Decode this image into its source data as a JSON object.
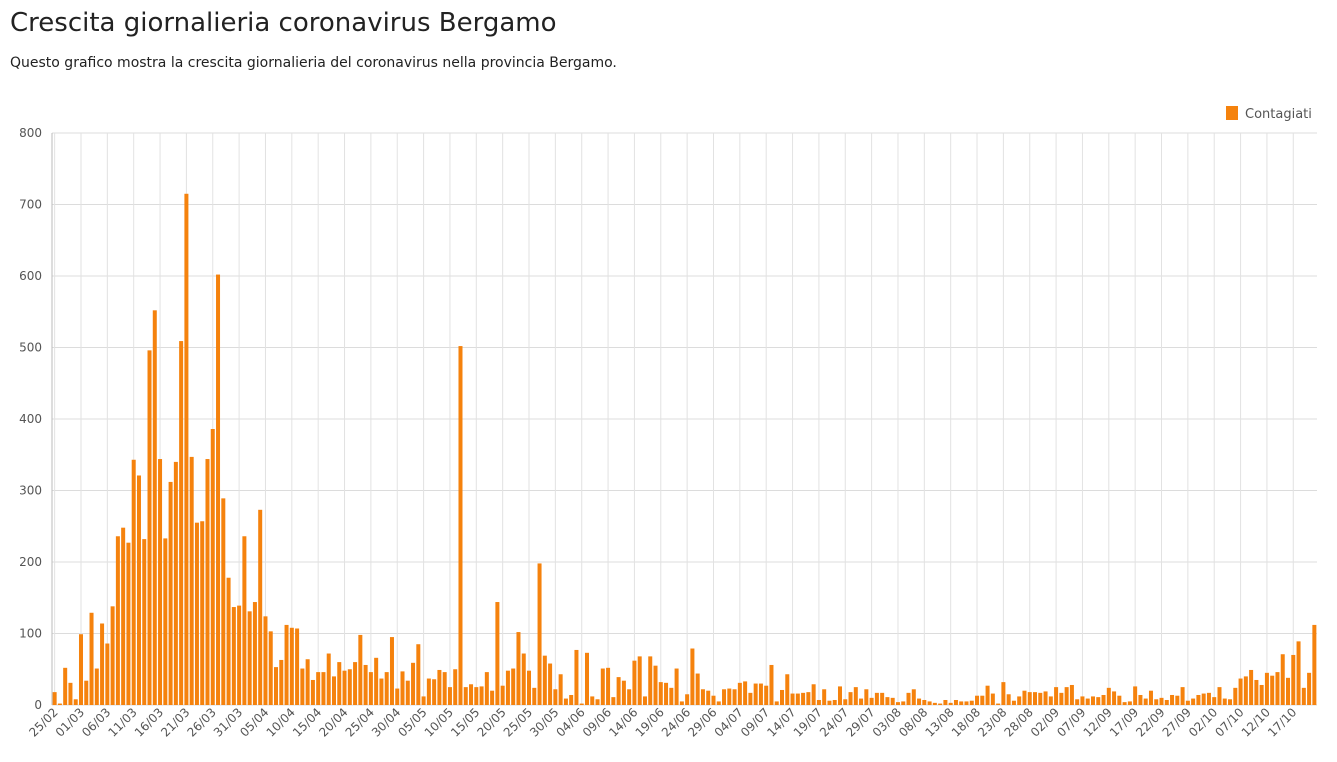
{
  "chart_data": {
    "type": "bar",
    "title": "Crescita giornalieria coronavirus Bergamo",
    "subtitle": "Questo grafico mostra la crescita giornalieria del coronavirus nella provincia Bergamo.",
    "categories": [
      "25/02",
      null,
      null,
      null,
      null,
      "01/03",
      null,
      null,
      null,
      null,
      "06/03",
      null,
      null,
      null,
      null,
      "11/03",
      null,
      null,
      null,
      null,
      "16/03",
      null,
      null,
      null,
      null,
      "21/03",
      null,
      null,
      null,
      null,
      "26/03",
      null,
      null,
      null,
      null,
      "31/03",
      null,
      null,
      null,
      null,
      "05/04",
      null,
      null,
      null,
      null,
      "10/04",
      null,
      null,
      null,
      null,
      "15/04",
      null,
      null,
      null,
      null,
      "20/04",
      null,
      null,
      null,
      null,
      "25/04",
      null,
      null,
      null,
      null,
      "30/04",
      null,
      null,
      null,
      null,
      "05/05",
      null,
      null,
      null,
      null,
      "10/05",
      null,
      null,
      null,
      null,
      "15/05",
      null,
      null,
      null,
      null,
      "20/05",
      null,
      null,
      null,
      null,
      "25/05",
      null,
      null,
      null,
      null,
      "30/05",
      null,
      null,
      null,
      null,
      "04/06",
      null,
      null,
      null,
      null,
      "09/06",
      null,
      null,
      null,
      null,
      "14/06",
      null,
      null,
      null,
      null,
      "19/06",
      null,
      null,
      null,
      null,
      "24/06",
      null,
      null,
      null,
      null,
      "29/06",
      null,
      null,
      null,
      null,
      "04/07",
      null,
      null,
      null,
      null,
      "09/07",
      null,
      null,
      null,
      null,
      "14/07",
      null,
      null,
      null,
      null,
      "19/07",
      null,
      null,
      null,
      null,
      "24/07",
      null,
      null,
      null,
      null,
      "29/07",
      null,
      null,
      null,
      null,
      "03/08",
      null,
      null,
      null,
      null,
      "08/08",
      null,
      null,
      null,
      null,
      "13/08",
      null,
      null,
      null,
      null,
      "18/08",
      null,
      null,
      null,
      null,
      "23/08",
      null,
      null,
      null,
      null,
      "28/08",
      null,
      null,
      null,
      null,
      "02/09",
      null,
      null,
      null,
      null,
      "07/09",
      null,
      null,
      null,
      null,
      "12/09",
      null,
      null,
      null,
      null,
      "17/09",
      null,
      null,
      null,
      null,
      "22/09",
      null,
      null,
      null,
      null,
      "27/09",
      null,
      null,
      null,
      null,
      "02/10",
      null,
      null,
      null,
      null,
      "07/10",
      null,
      null,
      null,
      null,
      "12/10",
      null,
      null,
      null,
      null,
      "17/10",
      null,
      null,
      null,
      null
    ],
    "series": [
      {
        "name": "Contagiati",
        "color": "#f5820d",
        "values": [
          18,
          2,
          52,
          31,
          8,
          99,
          34,
          129,
          51,
          114,
          86,
          138,
          236,
          248,
          227,
          343,
          321,
          232,
          496,
          552,
          344,
          233,
          312,
          340,
          509,
          715,
          347,
          255,
          257,
          344,
          386,
          602,
          289,
          178,
          137,
          139,
          236,
          131,
          144,
          273,
          124,
          103,
          53,
          63,
          112,
          108,
          107,
          51,
          64,
          35,
          46,
          46,
          72,
          40,
          60,
          48,
          50,
          60,
          98,
          56,
          46,
          66,
          37,
          46,
          95,
          23,
          47,
          34,
          59,
          85,
          12,
          37,
          36,
          49,
          46,
          25,
          50,
          502,
          25,
          29,
          25,
          26,
          46,
          20,
          144,
          27,
          48,
          51,
          102,
          72,
          48,
          24,
          198,
          69,
          58,
          22,
          43,
          9,
          14,
          77,
          2,
          73,
          12,
          8,
          51,
          52,
          11,
          39,
          34,
          22,
          62,
          68,
          12,
          68,
          55,
          32,
          31,
          24,
          51,
          5,
          15,
          79,
          44,
          22,
          20,
          13,
          5,
          22,
          23,
          22,
          31,
          33,
          17,
          30,
          30,
          27,
          56,
          5,
          21,
          43,
          16,
          16,
          17,
          18,
          29,
          7,
          22,
          6,
          7,
          26,
          8,
          18,
          25,
          9,
          22,
          10,
          17,
          17,
          11,
          10,
          4,
          5,
          17,
          22,
          9,
          7,
          5,
          3,
          2,
          7,
          3,
          7,
          5,
          5,
          6,
          13,
          13,
          27,
          16,
          2,
          32,
          15,
          6,
          12,
          20,
          18,
          18,
          17,
          19,
          12,
          25,
          17,
          25,
          28,
          8,
          12,
          9,
          12,
          11,
          14,
          24,
          19,
          13,
          4,
          5,
          26,
          14,
          9,
          20,
          8,
          10,
          7,
          14,
          13,
          25,
          6,
          9,
          14,
          16,
          17,
          11,
          25,
          9,
          8,
          24,
          37,
          40,
          49,
          35,
          28,
          45,
          41,
          46,
          71,
          38,
          70,
          89,
          24,
          45,
          112
        ]
      }
    ],
    "ylim": [
      0,
      800
    ],
    "yticks": [
      0,
      100,
      200,
      300,
      400,
      500,
      600,
      700,
      800
    ],
    "grid": true,
    "legend": "top-right"
  }
}
